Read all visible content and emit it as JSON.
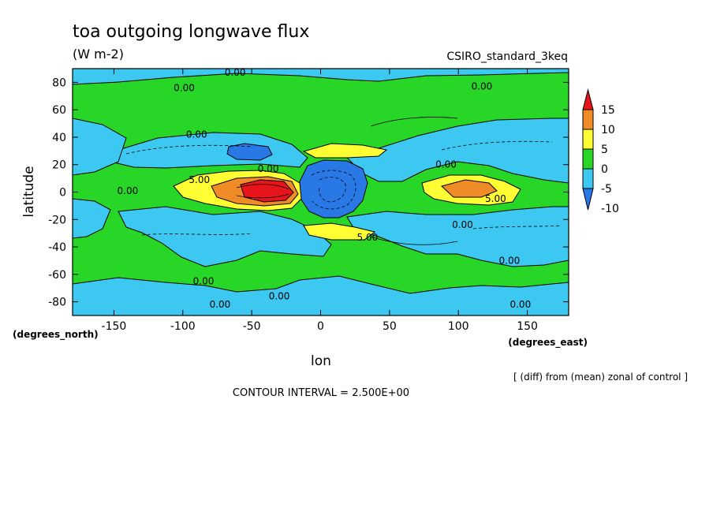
{
  "chart_data": {
    "type": "heatmap",
    "title": "toa outgoing longwave flux",
    "units": "(W m-2)",
    "subtitle_right": "CSIRO_standard_3keq",
    "xlabel": "lon",
    "ylabel": "latitude",
    "x_unit_note": "(degrees_east)",
    "y_unit_note": "(degrees_north)",
    "xlim": [
      -180,
      180
    ],
    "ylim": [
      -90,
      90
    ],
    "x_ticks": [
      -150,
      -100,
      -50,
      0,
      50,
      100,
      150
    ],
    "y_ticks": [
      -80,
      -60,
      -40,
      -20,
      0,
      20,
      40,
      60,
      80
    ],
    "colorbar": {
      "labels": [
        "15",
        "10",
        "5",
        "0",
        "-5",
        "-10"
      ],
      "bands": [
        {
          "from": 12.5,
          "to": 17.5,
          "color": "#e8141c"
        },
        {
          "from": 7.5,
          "to": 12.5,
          "color": "#f08c28"
        },
        {
          "from": 2.5,
          "to": 7.5,
          "color": "#ffff33"
        },
        {
          "from": -2.5,
          "to": 2.5,
          "color": "#28d628"
        },
        {
          "from": -7.5,
          "to": -2.5,
          "color": "#3cc8f0"
        },
        {
          "from": -12.5,
          "to": -7.5,
          "color": "#2878e6"
        }
      ]
    },
    "contour_labels": [
      {
        "text": "0.00",
        "x": -62,
        "y": 87
      },
      {
        "text": "0.00",
        "x": -99,
        "y": 76
      },
      {
        "text": "0.00",
        "x": 117,
        "y": 77
      },
      {
        "text": "0.00",
        "x": -90,
        "y": 42
      },
      {
        "text": "0.00",
        "x": -38,
        "y": 17
      },
      {
        "text": "0.00",
        "x": 91,
        "y": 20
      },
      {
        "text": "0.00",
        "x": -140,
        "y": 1
      },
      {
        "text": "5.00",
        "x": -88,
        "y": 9
      },
      {
        "text": "5.00",
        "x": 127,
        "y": -5
      },
      {
        "text": "0.00",
        "x": 103,
        "y": -24
      },
      {
        "text": "5.00",
        "x": 34,
        "y": -33
      },
      {
        "text": "0.00",
        "x": 137,
        "y": -50
      },
      {
        "text": "0.00",
        "x": -85,
        "y": -65
      },
      {
        "text": "0.00",
        "x": -30,
        "y": -76
      },
      {
        "text": "0.00",
        "x": -73,
        "y": -82
      },
      {
        "text": "0.00",
        "x": 145,
        "y": -82
      }
    ],
    "footer_note": "[ (diff) from (mean) zonal of control ]",
    "contour_interval": "CONTOUR INTERVAL = 2.500E+00"
  }
}
